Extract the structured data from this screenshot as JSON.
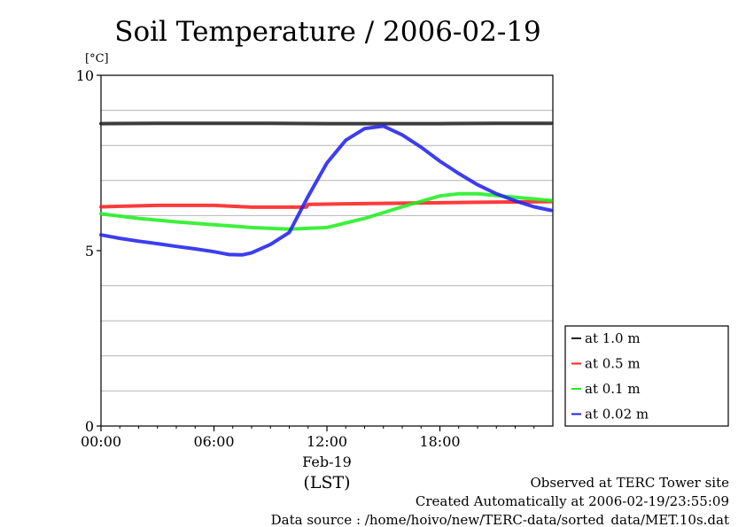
{
  "chart_data": {
    "type": "line",
    "title": "Soil Temperature / 2006-02-19",
    "ylabel": "[°C]",
    "xlabel": "(LST)",
    "date_label": "Feb-19",
    "ylim": [
      0,
      10
    ],
    "xlim_hours": [
      0,
      24
    ],
    "y_ticks": [
      0,
      5,
      10
    ],
    "y_minor_gridlines": [
      1,
      2,
      3,
      4,
      6,
      7,
      8,
      9
    ],
    "x_ticks": [
      {
        "value": 0,
        "label": "00:00"
      },
      {
        "value": 6,
        "label": "06:00"
      },
      {
        "value": 12,
        "label": "12:00"
      },
      {
        "value": 18,
        "label": "18:00"
      }
    ],
    "grid": true,
    "legend_position": "right",
    "series": [
      {
        "name": "at 1.0 m",
        "color": "#222222",
        "x": [
          0,
          3,
          6,
          9,
          12,
          15,
          18,
          21,
          23.9
        ],
        "y": [
          8.62,
          8.63,
          8.63,
          8.63,
          8.62,
          8.62,
          8.62,
          8.63,
          8.63
        ]
      },
      {
        "name": "at 0.5 m",
        "color": "#ff2020",
        "x": [
          0,
          3,
          6,
          8,
          10.9,
          11,
          14,
          17,
          20,
          23.9
        ],
        "y": [
          6.25,
          6.29,
          6.29,
          6.24,
          6.24,
          6.32,
          6.34,
          6.36,
          6.38,
          6.4
        ]
      },
      {
        "name": "at 0.1 m",
        "color": "#22ee22",
        "x": [
          0,
          2,
          4,
          6,
          8,
          10,
          12,
          14,
          16,
          18,
          19,
          20,
          22,
          23.9
        ],
        "y": [
          6.05,
          5.92,
          5.82,
          5.74,
          5.66,
          5.61,
          5.66,
          5.92,
          6.25,
          6.56,
          6.62,
          6.62,
          6.52,
          6.43
        ]
      },
      {
        "name": "at 0.02 m",
        "color": "#2222ee",
        "x": [
          0,
          1,
          2,
          3,
          4,
          5,
          6,
          6.8,
          7.5,
          8,
          9,
          10,
          11,
          12,
          13,
          14,
          15,
          16,
          17,
          18,
          19,
          20,
          21,
          22,
          23,
          23.9
        ],
        "y": [
          5.45,
          5.35,
          5.27,
          5.2,
          5.12,
          5.05,
          4.97,
          4.89,
          4.88,
          4.94,
          5.18,
          5.52,
          6.55,
          7.5,
          8.15,
          8.48,
          8.55,
          8.3,
          7.95,
          7.55,
          7.2,
          6.88,
          6.62,
          6.42,
          6.25,
          6.15
        ]
      }
    ]
  },
  "footer": {
    "line1": "Observed at TERC Tower site",
    "line2": "Created Automatically at 2006-02-19/23:55:09",
    "line3": "Data source : /home/hoivo/new/TERC-data/sorted_data/MET.10s.dat"
  }
}
